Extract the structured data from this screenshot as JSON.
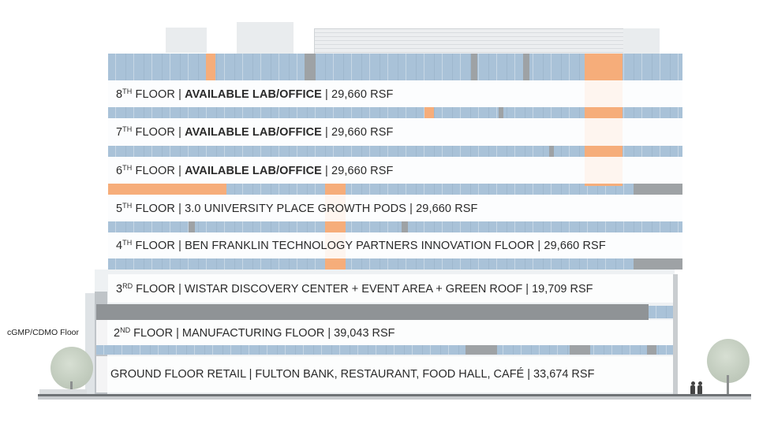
{
  "floors": {
    "f8": {
      "num": "8",
      "sup": "TH",
      "pre": " FLOOR | ",
      "bold": "AVAILABLE LAB/OFFICE",
      "post": " | 29,660 RSF"
    },
    "f7": {
      "num": "7",
      "sup": "TH",
      "pre": " FLOOR | ",
      "bold": "AVAILABLE LAB/OFFICE",
      "post": " | 29,660 RSF"
    },
    "f6": {
      "num": "6",
      "sup": "TH",
      "pre": " FLOOR | ",
      "bold": "AVAILABLE LAB/OFFICE",
      "post": " | 29,660 RSF"
    },
    "f5": {
      "num": "5",
      "sup": "TH",
      "text": " FLOOR | 3.0 UNIVERSITY PLACE GROWTH PODS | 29,660 RSF"
    },
    "f4": {
      "num": "4",
      "sup": "TH",
      "text": " FLOOR | BEN FRANKLIN TECHNOLOGY PARTNERS INNOVATION FLOOR | 29,660 RSF"
    },
    "f3": {
      "num": "3",
      "sup": "RD",
      "text": " FLOOR | WISTAR DISCOVERY CENTER + EVENT AREA + GREEN ROOF | 19,709 RSF"
    },
    "f2": {
      "num": "2",
      "sup": "ND",
      "text": " FLOOR | MANUFACTURING FLOOR | 39,043 RSF"
    },
    "ground": {
      "text": "GROUND FLOOR RETAIL | FULTON BANK, RESTAURANT, FOOD HALL, CAFÉ | 33,674 RSF"
    }
  },
  "side_label": "cGMP/CDMO Floor",
  "colors": {
    "accent_orange": "#f6ad7a",
    "glass_blue": "#a9c2d8",
    "slab_grey": "#8f9396"
  }
}
